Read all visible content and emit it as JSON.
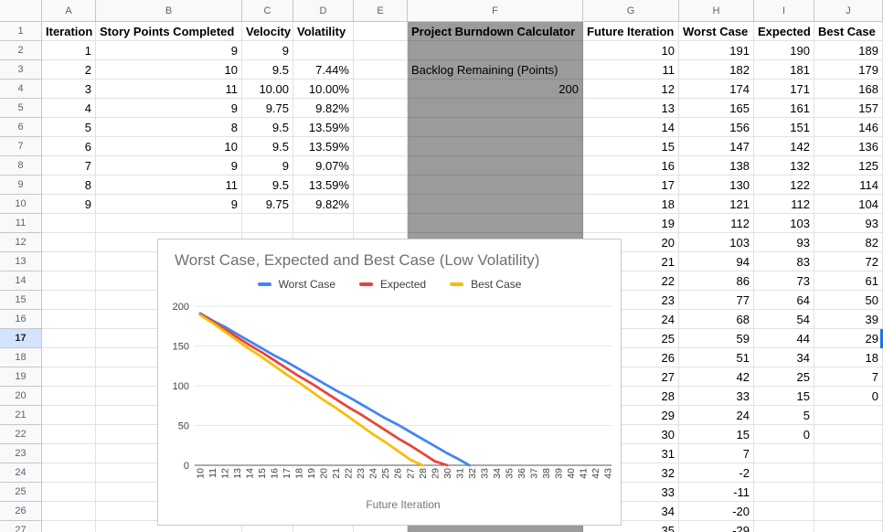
{
  "sheet": {
    "column_letters": [
      "A",
      "B",
      "C",
      "D",
      "E",
      "F",
      "G",
      "H",
      "I",
      "J"
    ],
    "visible_row_count": 27,
    "active_row": 17
  },
  "left_table": {
    "headers": [
      "Iteration",
      "Story Points Completed",
      "Velocity",
      "Volatility"
    ],
    "rows": [
      [
        "1",
        "9",
        "9",
        ""
      ],
      [
        "2",
        "10",
        "9.5",
        "7.44%"
      ],
      [
        "3",
        "11",
        "10.00",
        "10.00%"
      ],
      [
        "4",
        "9",
        "9.75",
        "9.82%"
      ],
      [
        "5",
        "8",
        "9.5",
        "13.59%"
      ],
      [
        "6",
        "10",
        "9.5",
        "13.59%"
      ],
      [
        "7",
        "9",
        "9",
        "9.07%"
      ],
      [
        "8",
        "11",
        "9.5",
        "13.59%"
      ],
      [
        "9",
        "9",
        "9.75",
        "9.82%"
      ]
    ]
  },
  "calculator": {
    "title": "Project Burndown Calculator",
    "label": "Backlog Remaining (Points)",
    "value": "200"
  },
  "right_table": {
    "headers": [
      "Future Iteration",
      "Worst Case",
      "Expected",
      "Best Case"
    ],
    "rows": [
      [
        "10",
        "191",
        "190",
        "189"
      ],
      [
        "11",
        "182",
        "181",
        "179"
      ],
      [
        "12",
        "174",
        "171",
        "168"
      ],
      [
        "13",
        "165",
        "161",
        "157"
      ],
      [
        "14",
        "156",
        "151",
        "146"
      ],
      [
        "15",
        "147",
        "142",
        "136"
      ],
      [
        "16",
        "138",
        "132",
        "125"
      ],
      [
        "17",
        "130",
        "122",
        "114"
      ],
      [
        "18",
        "121",
        "112",
        "104"
      ],
      [
        "19",
        "112",
        "103",
        "93"
      ],
      [
        "20",
        "103",
        "93",
        "82"
      ],
      [
        "21",
        "94",
        "83",
        "72"
      ],
      [
        "22",
        "86",
        "73",
        "61"
      ],
      [
        "23",
        "77",
        "64",
        "50"
      ],
      [
        "24",
        "68",
        "54",
        "39"
      ],
      [
        "25",
        "59",
        "44",
        "29"
      ],
      [
        "26",
        "51",
        "34",
        "18"
      ],
      [
        "27",
        "42",
        "25",
        "7"
      ],
      [
        "28",
        "33",
        "15",
        "0"
      ],
      [
        "29",
        "24",
        "5",
        ""
      ],
      [
        "30",
        "15",
        "0",
        ""
      ],
      [
        "31",
        "7",
        "",
        ""
      ],
      [
        "32",
        "-2",
        "",
        ""
      ],
      [
        "33",
        "-11",
        "",
        ""
      ],
      [
        "34",
        "-20",
        "",
        ""
      ],
      [
        "35",
        "-29",
        "",
        ""
      ]
    ]
  },
  "chart_data": {
    "type": "line",
    "title": "Worst Case, Expected and Best Case (Low Volatility)",
    "xlabel": "Future Iteration",
    "x": [
      10,
      11,
      12,
      13,
      14,
      15,
      16,
      17,
      18,
      19,
      20,
      21,
      22,
      23,
      24,
      25,
      26,
      27,
      28,
      29,
      30,
      31,
      32,
      33,
      34,
      35,
      36,
      37,
      38,
      39,
      40,
      41,
      42,
      43
    ],
    "yticks": [
      0,
      50,
      100,
      150,
      200
    ],
    "ylim": [
      0,
      200
    ],
    "grid": true,
    "legend_position": "top",
    "series": [
      {
        "name": "Worst Case",
        "color": "#4285f4",
        "values": [
          191,
          182,
          174,
          165,
          156,
          147,
          138,
          130,
          121,
          112,
          103,
          94,
          86,
          77,
          68,
          59,
          51,
          42,
          33,
          24,
          15,
          7,
          -2,
          -11,
          -20,
          -29
        ]
      },
      {
        "name": "Expected",
        "color": "#ea4335",
        "values": [
          190,
          181,
          171,
          161,
          151,
          142,
          132,
          122,
          112,
          103,
          93,
          83,
          73,
          64,
          54,
          44,
          34,
          25,
          15,
          5,
          0
        ]
      },
      {
        "name": "Best Case",
        "color": "#fbbc04",
        "values": [
          189,
          179,
          168,
          157,
          146,
          136,
          125,
          114,
          104,
          93,
          82,
          72,
          61,
          50,
          39,
          29,
          18,
          7,
          0
        ]
      }
    ]
  },
  "colors": {
    "gray_fill": "#9b9b9b",
    "active_row_bg": "#d3e3fd",
    "selection_blue": "#1a73e8",
    "grid_line": "#e6e6e6",
    "axis_line": "#595959"
  }
}
